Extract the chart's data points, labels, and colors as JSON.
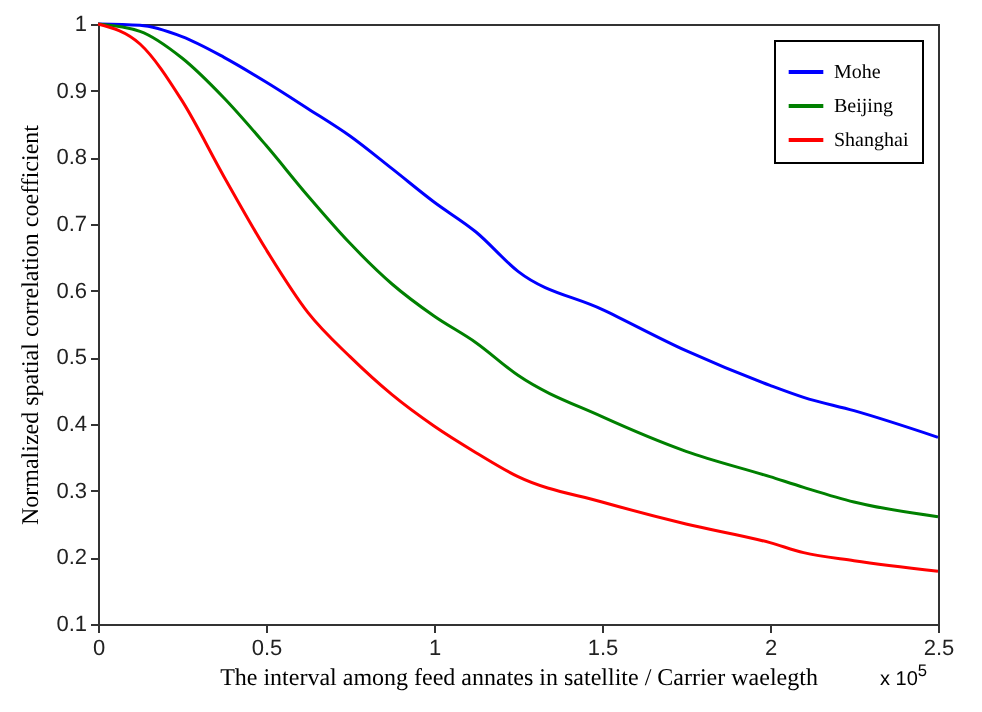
{
  "chart_data": {
    "type": "line",
    "xlabel": "The interval among feed annates in satellite / Carrier waelegth",
    "ylabel": "Normalized spatial correlation coefficient",
    "annotations": [
      "x 10$^{5}$"
    ],
    "xlim": [
      0,
      2.5
    ],
    "xticks": [
      0,
      0.5,
      1,
      1.5,
      2,
      2.5
    ],
    "ylim": [
      0.1,
      1
    ],
    "yticks": [
      0.1,
      0.2,
      0.3,
      0.4,
      0.5,
      0.6,
      0.7,
      0.8,
      0.9,
      1
    ],
    "grid": false,
    "legend": "top right",
    "marker": "none",
    "line_style": "solid",
    "x": [
      0,
      0.125,
      0.25,
      0.375,
      0.5,
      0.625,
      0.75,
      0.875,
      1,
      1.125,
      1.25,
      1.5,
      1.75,
      2,
      2.1,
      2.25,
      2.5
    ],
    "series": [
      {
        "name": "Mohe",
        "color": "#0000ff",
        "values": [
          1,
          0.998,
          0.981,
          0.95,
          0.913,
          0.873,
          0.832,
          0.783,
          0.733,
          0.688,
          0.629,
          0.572,
          0.51,
          0.458,
          0.44,
          0.42,
          0.38
        ]
      },
      {
        "name": "Beijing",
        "color": "#008000",
        "values": [
          1,
          0.989,
          0.949,
          0.889,
          0.818,
          0.742,
          0.671,
          0.61,
          0.562,
          0.522,
          0.473,
          0.411,
          0.359,
          0.321,
          0.305,
          0.283,
          0.261
        ]
      },
      {
        "name": "Shanghai",
        "color": "#ff0000",
        "values": [
          1,
          0.97,
          0.885,
          0.771,
          0.662,
          0.567,
          0.501,
          0.444,
          0.397,
          0.357,
          0.321,
          0.283,
          0.25,
          0.222,
          0.207,
          0.195,
          0.179
        ]
      }
    ]
  }
}
